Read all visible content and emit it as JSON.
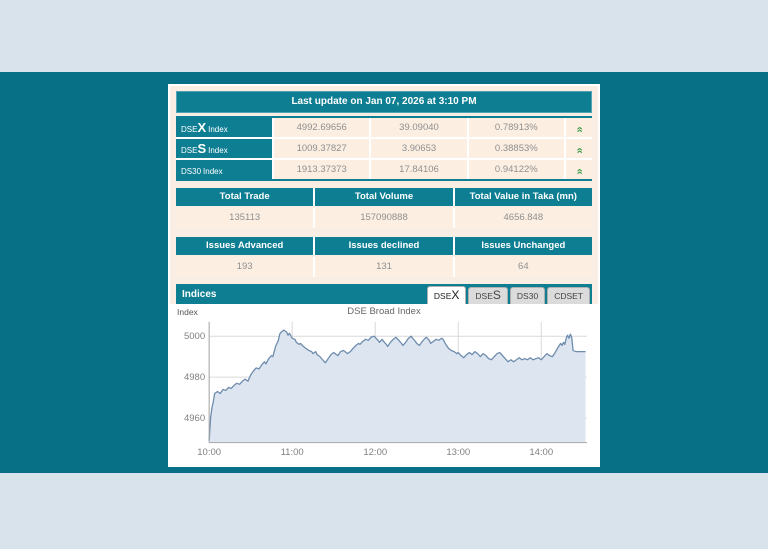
{
  "panel": {
    "last_update": "Last update on Jan 07, 2026 at 3:10 PM",
    "indices_table": {
      "rows": [
        {
          "name_pre": "DSE",
          "name_big": "X",
          "name_suf": "Index",
          "value": "4992.69656",
          "change": "39.09040",
          "percent": "0.78913%",
          "direction": "up"
        },
        {
          "name_pre": "DSE",
          "name_big": "S",
          "name_suf": "Index",
          "value": "1009.37827",
          "change": "3.90653",
          "percent": "0.38853%",
          "direction": "up"
        },
        {
          "name_pre": "DS30",
          "name_big": "",
          "name_suf": "Index",
          "value": "1913.37373",
          "change": "17.84106",
          "percent": "0.94122%",
          "direction": "up"
        }
      ]
    },
    "totals": {
      "headers": [
        "Total Trade",
        "Total Volume",
        "Total Value in Taka (mn)"
      ],
      "values": [
        "135113",
        "157090888",
        "4656.848"
      ]
    },
    "issues": {
      "headers": [
        "Issues Advanced",
        "Issues declined",
        "Issues Unchanged"
      ],
      "values": [
        "193",
        "131",
        "64"
      ]
    },
    "indices_bar": {
      "title": "Indices",
      "tabs": [
        {
          "pre": "DSE",
          "big": "X",
          "active": true
        },
        {
          "pre": "DSE",
          "big": "S",
          "active": false
        },
        {
          "pre": "DS30",
          "big": "",
          "active": false
        },
        {
          "pre": "CDSET",
          "big": "",
          "active": false
        }
      ]
    }
  },
  "icons": {
    "up_double_arrow": "«"
  },
  "colors": {
    "page_teal": "#077086",
    "bar_teal": "#0E7E93",
    "strip_blue": "#D9E3EB",
    "cell_peach": "#FCEFE2",
    "arrow_green": "#3E9C47"
  },
  "chart_data": {
    "type": "area",
    "title": "DSE Broad Index",
    "ylabel": "Index",
    "x_unit": "minutes_of_day",
    "xlim": [
      600,
      873
    ],
    "ylim": [
      4948,
      5007
    ],
    "grid": true,
    "line_color": "#6E8CAD",
    "fill_color": "#DCE5F0",
    "xticks": [
      {
        "t": 600,
        "label": "10:00"
      },
      {
        "t": 660,
        "label": "11:00"
      },
      {
        "t": 720,
        "label": "12:00"
      },
      {
        "t": 780,
        "label": "13:00"
      },
      {
        "t": 840,
        "label": "14:00"
      }
    ],
    "yticks": [
      4960,
      4980,
      5000
    ],
    "x": [
      600,
      601,
      602,
      603,
      604,
      606,
      608,
      610,
      612,
      614,
      616,
      618,
      620,
      622,
      624,
      626,
      628,
      630,
      632,
      634,
      636,
      638,
      640,
      641,
      643,
      645,
      646,
      648,
      650,
      651,
      652,
      654,
      656,
      657,
      658,
      660,
      662,
      663,
      665,
      666,
      668,
      670,
      672,
      674,
      675,
      677,
      678,
      680,
      682,
      684,
      686,
      688,
      690,
      692,
      693,
      695,
      697,
      699,
      700,
      702,
      704,
      706,
      708,
      709,
      711,
      713,
      715,
      717,
      719,
      720,
      722,
      723,
      725,
      726,
      728,
      729,
      731,
      733,
      735,
      737,
      739,
      740,
      742,
      744,
      746,
      747,
      749,
      750,
      752,
      754,
      756,
      757,
      759,
      760,
      762,
      764,
      766,
      768,
      769,
      771,
      773,
      775,
      777,
      779,
      780,
      782,
      784,
      786,
      788,
      790,
      792,
      794,
      796,
      798,
      800,
      802,
      804,
      806,
      808,
      810,
      812,
      814,
      816,
      818,
      820,
      822,
      824,
      826,
      828,
      830,
      832,
      834,
      836,
      838,
      840,
      842,
      844,
      846,
      848,
      850,
      852,
      854,
      855,
      856,
      857,
      858,
      859,
      860,
      861,
      862,
      863,
      865,
      868,
      872
    ],
    "values": [
      4949,
      4960,
      4965,
      4968,
      4972,
      4973,
      4972,
      4974,
      4973.5,
      4975,
      4974.5,
      4976,
      4977,
      4976.5,
      4978,
      4979,
      4978,
      4981,
      4983,
      4984.5,
      4984,
      4986,
      4987.5,
      4986.5,
      4989,
      4990.5,
      4990,
      4995,
      4998,
      5001,
      5002,
      5003,
      5002,
      5000.5,
      5001.5,
      4999,
      4998.5,
      4997,
      4996,
      4996.5,
      4995,
      4994,
      4993,
      4992.5,
      4991.5,
      4992.5,
      4991,
      4990,
      4988.5,
      4987,
      4989,
      4991,
      4992,
      4991,
      4990.5,
      4992.5,
      4993,
      4992,
      4991.5,
      4992.5,
      4994,
      4995.5,
      4996.5,
      4996,
      4997.5,
      4998.5,
      4998,
      4999.5,
      5000,
      4999.5,
      4998,
      4997,
      4998.5,
      4997.5,
      4996,
      4995,
      4997,
      4998.5,
      4999.5,
      4998,
      4996.5,
      4995.5,
      4997,
      4999,
      5000,
      4999,
      4997.5,
      4996.5,
      4995.5,
      4997.5,
      4999,
      4999.5,
      4998,
      4996.5,
      4997.5,
      4998.5,
      4998,
      4999,
      4998.5,
      4996,
      4994,
      4993,
      4992.5,
      4991.5,
      4992,
      4990.5,
      4989.5,
      4991,
      4992,
      4991,
      4992.5,
      4991.5,
      4990,
      4991.5,
      4990.5,
      4989,
      4988.5,
      4990,
      4991.5,
      4992,
      4990.5,
      4989,
      4987.5,
      4988.5,
      4987.5,
      4988.5,
      4989.5,
      4988.5,
      4989,
      4988.5,
      4989.5,
      4988.5,
      4989,
      4989.5,
      4988.5,
      4990,
      4991.5,
      4990.5,
      4990,
      4992,
      4994.5,
      4996.5,
      4995.5,
      4997,
      4996,
      4999,
      5000.5,
      4999,
      5001,
      4999.5,
      4993,
      4992.5,
      4992.5,
      4992.5
    ]
  }
}
